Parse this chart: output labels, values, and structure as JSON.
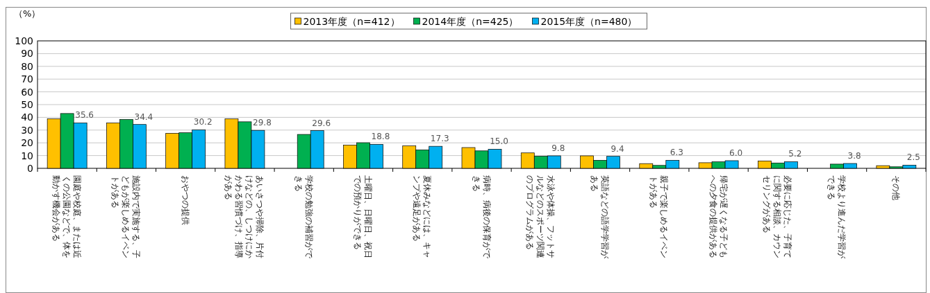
{
  "chart_data": {
    "type": "bar",
    "ylabel": "（%）",
    "categories": [
      "園庭や校庭、または近くの公園などで、体を動かす機会がある",
      "施設内で実施する、子どもが楽しめるイベントがある",
      "おやつの提供",
      "あいさつや掃除、片付けなどの、しつけにかかわる習慣づけ、指導がある",
      "学校の勉強の補習ができる",
      "土曜日、日曜日、祝日での預かりができる",
      "夏休みなどには、キャンプや遠足がある",
      "病時、病後の保育ができる",
      "水泳や体操、フットサルなどのスポーツ関連のプログラムがある",
      "英語などの語学学習がある",
      "親子で楽しめるイベントがある",
      "帰宅が遅くなる子どもへの夕食の提供がある",
      "必要に応じた、子育てに関する相談、カウンセリングがある",
      "学校より進んだ学習ができる",
      "その他"
    ],
    "series": [
      {
        "name": "2013年度（n=412）",
        "color": "#ffc000",
        "values": [
          38.8,
          35.6,
          27.5,
          38.8,
          null,
          18.2,
          17.6,
          16.3,
          12.1,
          9.8,
          3.7,
          4.4,
          5.8,
          null,
          2.1
        ]
      },
      {
        "name": "2014年度（n=425）",
        "color": "#00b050",
        "values": [
          43.0,
          38.3,
          27.9,
          36.5,
          26.6,
          20.1,
          14.5,
          13.7,
          9.5,
          6.3,
          2.3,
          5.1,
          4.2,
          3.3,
          1.2
        ]
      },
      {
        "name": "2015年度（n=480）",
        "color": "#00b0f0",
        "values": [
          35.6,
          34.4,
          30.2,
          29.8,
          29.6,
          18.8,
          17.3,
          15.0,
          9.8,
          9.4,
          6.3,
          6.0,
          5.2,
          3.8,
          2.5
        ],
        "value_labels": [
          "35.6",
          "34.4",
          "30.2",
          "29.8",
          "29.6",
          "18.8",
          "17.3",
          "15.0",
          "9.8",
          "9.4",
          "6.3",
          "6.0",
          "5.2",
          "3.8",
          "2.5"
        ]
      }
    ],
    "ylim": [
      0,
      100
    ],
    "yticks": [
      0,
      10,
      20,
      30,
      40,
      50,
      60,
      70,
      80,
      90,
      100
    ],
    "grid": "y",
    "legend": "top"
  }
}
